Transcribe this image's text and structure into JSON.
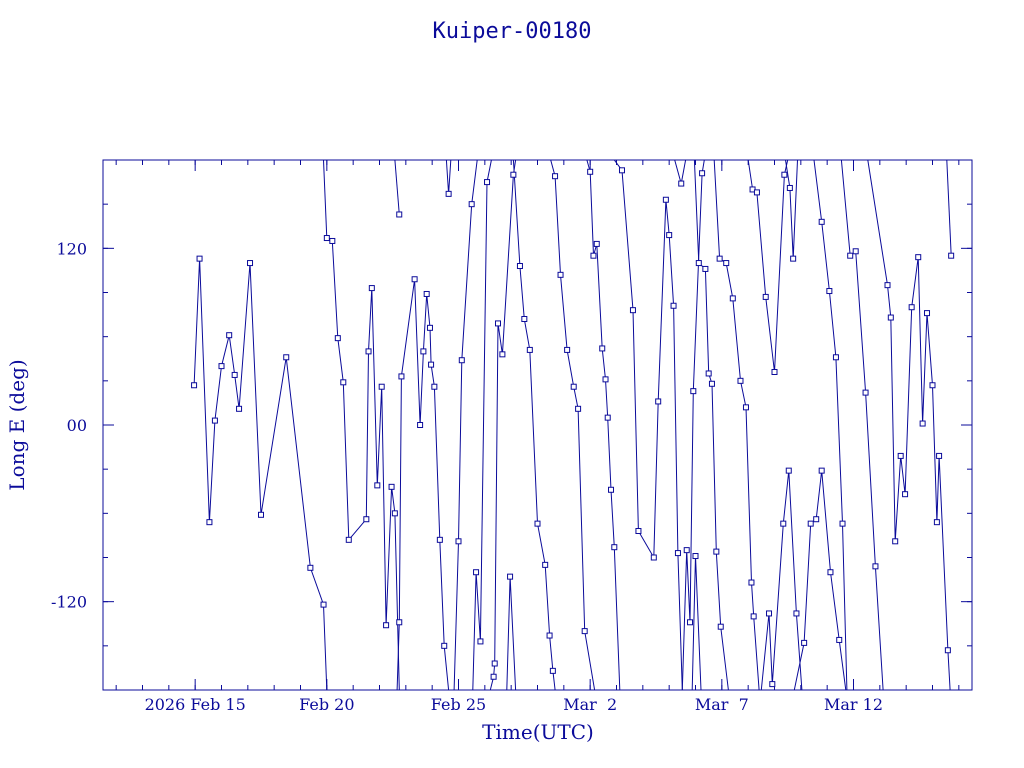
{
  "chart_data": {
    "type": "line",
    "title": "Kuiper-00180",
    "xlabel": "Time(UTC)",
    "ylabel": "Long E (deg)",
    "x_unit": "date",
    "xlim": [
      "2026-02-11T12:00",
      "2026-03-16T12:00"
    ],
    "ylim": [
      -180,
      180
    ],
    "x_ticks": [
      {
        "date": "2026-02-15",
        "label": "2026 Feb 15"
      },
      {
        "date": "2026-02-20",
        "label": "Feb 20"
      },
      {
        "date": "2026-02-25",
        "label": "Feb 25"
      },
      {
        "date": "2026-03-02",
        "label": "Mar  2"
      },
      {
        "date": "2026-03-07",
        "label": "Mar  7"
      },
      {
        "date": "2026-03-12",
        "label": "Mar 12"
      }
    ],
    "y_ticks": [
      {
        "value": 120,
        "label": "120"
      },
      {
        "value": 0,
        "label": "00"
      },
      {
        "value": -120,
        "label": "-120"
      }
    ],
    "colors": {
      "line": "#0b0b9a",
      "marker": "#0b0b9a",
      "frame": "#0b0b9a",
      "background": "#ffffff"
    },
    "markers": "open-square",
    "series": [
      {
        "points": [
          [
            "2026-02-14T23:00",
            27
          ],
          [
            "2026-02-15T04:00",
            113
          ],
          [
            "2026-02-15T13:00",
            -66
          ],
          [
            "2026-02-15T18:00",
            3
          ],
          [
            "2026-02-16T00:00",
            40
          ],
          [
            "2026-02-16T07:00",
            61
          ],
          [
            "2026-02-16T12:00",
            34
          ],
          [
            "2026-02-16T16:00",
            11
          ],
          [
            "2026-02-17T02:00",
            110
          ],
          [
            "2026-02-17T12:00",
            -61
          ],
          [
            "2026-02-18T11:00",
            46
          ],
          [
            "2026-02-19T09:00",
            -97
          ],
          [
            "2026-02-19T21:00",
            -122
          ],
          [
            "2026-02-20T00:00",
            -180
          ]
        ]
      },
      {
        "points": [
          [
            "2026-02-19T21:00",
            180
          ],
          [
            "2026-02-20T00:00",
            127
          ],
          [
            "2026-02-20T05:00",
            125
          ],
          [
            "2026-02-20T10:00",
            59
          ],
          [
            "2026-02-20T15:00",
            29
          ],
          [
            "2026-02-20T20:00",
            -78
          ],
          [
            "2026-02-21T12:00",
            -64
          ],
          [
            "2026-02-21T14:00",
            50
          ],
          [
            "2026-02-21T17:00",
            93
          ],
          [
            "2026-02-21T22:00",
            -41
          ],
          [
            "2026-02-22T02:00",
            26
          ],
          [
            "2026-02-22T06:00",
            -136
          ],
          [
            "2026-02-22T11:00",
            -42
          ],
          [
            "2026-02-22T14:00",
            -60
          ],
          [
            "2026-02-22T18:00",
            -180
          ]
        ]
      },
      {
        "points": [
          [
            "2026-02-22T14:00",
            180
          ],
          [
            "2026-02-22T18:00",
            143
          ]
        ]
      },
      {
        "points": [
          [
            "2026-02-22T16:00",
            -180
          ],
          [
            "2026-02-22T18:00",
            -134
          ],
          [
            "2026-02-22T20:00",
            33
          ],
          [
            "2026-02-23T08:00",
            99
          ],
          [
            "2026-02-23T13:00",
            0
          ],
          [
            "2026-02-23T16:00",
            50
          ],
          [
            "2026-02-23T19:00",
            89
          ],
          [
            "2026-02-23T22:00",
            66
          ],
          [
            "2026-02-23T23:00",
            41
          ],
          [
            "2026-02-24T02:00",
            26
          ],
          [
            "2026-02-24T07:00",
            -78
          ],
          [
            "2026-02-24T11:00",
            -150
          ],
          [
            "2026-02-24T15:00",
            -180
          ]
        ]
      },
      {
        "points": [
          [
            "2026-02-24T13:00",
            180
          ],
          [
            "2026-02-24T15:00",
            157
          ],
          [
            "2026-02-24T17:00",
            180
          ]
        ]
      },
      {
        "points": [
          [
            "2026-02-24T20:00",
            -180
          ],
          [
            "2026-02-25T00:00",
            -79
          ],
          [
            "2026-02-25T03:00",
            44
          ],
          [
            "2026-02-25T12:00",
            150
          ],
          [
            "2026-02-25T17:00",
            180
          ]
        ]
      },
      {
        "points": [
          [
            "2026-02-25T13:00",
            -180
          ],
          [
            "2026-02-25T16:00",
            -100
          ],
          [
            "2026-02-25T20:00",
            -147
          ],
          [
            "2026-02-26T02:00",
            165
          ],
          [
            "2026-02-26T06:00",
            180
          ]
        ]
      },
      {
        "points": [
          [
            "2026-02-26T05:00",
            -180
          ],
          [
            "2026-02-26T08:00",
            -171
          ],
          [
            "2026-02-26T09:00",
            -162
          ],
          [
            "2026-02-26T12:00",
            69
          ],
          [
            "2026-02-26T16:00",
            48
          ],
          [
            "2026-02-27T02:00",
            170
          ],
          [
            "2026-02-27T04:00",
            180
          ]
        ]
      },
      {
        "points": [
          [
            "2026-02-26T20:00",
            -180
          ],
          [
            "2026-02-26T23:00",
            -103
          ],
          [
            "2026-02-27T04:00",
            -180
          ]
        ]
      },
      {
        "points": [
          [
            "2026-02-27T02:00",
            180
          ],
          [
            "2026-02-27T08:00",
            108
          ],
          [
            "2026-02-27T12:00",
            72
          ],
          [
            "2026-02-27T17:00",
            51
          ],
          [
            "2026-02-28T00:00",
            -67
          ],
          [
            "2026-02-28T07:00",
            -95
          ],
          [
            "2026-02-28T11:00",
            -143
          ],
          [
            "2026-02-28T14:00",
            -167
          ],
          [
            "2026-02-28T16:00",
            -180
          ]
        ]
      },
      {
        "points": [
          [
            "2026-02-28T12:00",
            180
          ],
          [
            "2026-02-28T16:00",
            169
          ],
          [
            "2026-02-28T21:00",
            102
          ],
          [
            "2026-03-01T03:00",
            51
          ],
          [
            "2026-03-01T09:00",
            26
          ],
          [
            "2026-03-01T13:00",
            11
          ],
          [
            "2026-03-01T19:00",
            -140
          ],
          [
            "2026-03-02T04:00",
            -180
          ]
        ]
      },
      {
        "points": [
          [
            "2026-03-01T21:00",
            180
          ],
          [
            "2026-03-02T00:00",
            172
          ],
          [
            "2026-03-02T03:00",
            115
          ],
          [
            "2026-03-02T06:00",
            123
          ],
          [
            "2026-03-02T11:00",
            52
          ],
          [
            "2026-03-02T14:00",
            31
          ],
          [
            "2026-03-02T16:00",
            5
          ],
          [
            "2026-03-02T19:00",
            -44
          ],
          [
            "2026-03-02T22:00",
            -83
          ],
          [
            "2026-03-03T03:00",
            -180
          ]
        ]
      },
      {
        "points": [
          [
            "2026-03-02T22:00",
            180
          ],
          [
            "2026-03-03T05:00",
            173
          ],
          [
            "2026-03-03T15:00",
            78
          ],
          [
            "2026-03-03T20:00",
            -72
          ],
          [
            "2026-03-04T10:00",
            -90
          ],
          [
            "2026-03-04T14:00",
            16
          ],
          [
            "2026-03-04T21:00",
            153
          ],
          [
            "2026-03-05T00:00",
            129
          ],
          [
            "2026-03-05T04:00",
            81
          ],
          [
            "2026-03-05T08:00",
            -87
          ],
          [
            "2026-03-05T12:00",
            -180
          ]
        ]
      },
      {
        "points": [
          [
            "2026-03-05T05:00",
            180
          ],
          [
            "2026-03-05T11:00",
            164
          ],
          [
            "2026-03-05T15:00",
            180
          ]
        ]
      },
      {
        "points": [
          [
            "2026-03-05T12:00",
            -180
          ],
          [
            "2026-03-05T16:00",
            -85
          ],
          [
            "2026-03-05T19:00",
            -134
          ],
          [
            "2026-03-05T22:00",
            23
          ],
          [
            "2026-03-06T06:00",
            171
          ],
          [
            "2026-03-06T08:00",
            180
          ]
        ]
      },
      {
        "points": [
          [
            "2026-03-05T21:00",
            -180
          ],
          [
            "2026-03-06T00:00",
            -89
          ],
          [
            "2026-03-06T05:00",
            -180
          ]
        ]
      },
      {
        "points": [
          [
            "2026-03-05T23:00",
            180
          ],
          [
            "2026-03-06T03:00",
            110
          ],
          [
            "2026-03-06T09:00",
            106
          ],
          [
            "2026-03-06T12:00",
            35
          ],
          [
            "2026-03-06T15:00",
            28
          ],
          [
            "2026-03-06T19:00",
            -86
          ],
          [
            "2026-03-06T23:00",
            -137
          ],
          [
            "2026-03-07T06:00",
            -180
          ]
        ]
      },
      {
        "points": [
          [
            "2026-03-06T17:00",
            180
          ],
          [
            "2026-03-06T22:00",
            113
          ],
          [
            "2026-03-07T04:00",
            110
          ],
          [
            "2026-03-07T10:00",
            86
          ],
          [
            "2026-03-07T17:00",
            30
          ],
          [
            "2026-03-07T22:00",
            12
          ],
          [
            "2026-03-08T03:00",
            -107
          ],
          [
            "2026-03-08T05:00",
            -130
          ],
          [
            "2026-03-08T10:00",
            -180
          ]
        ]
      },
      {
        "points": [
          [
            "2026-03-08T00:00",
            180
          ],
          [
            "2026-03-08T04:00",
            160
          ],
          [
            "2026-03-08T08:00",
            158
          ],
          [
            "2026-03-08T16:00",
            87
          ],
          [
            "2026-03-09T00:00",
            36
          ],
          [
            "2026-03-09T09:00",
            170
          ],
          [
            "2026-03-09T12:00",
            180
          ]
        ]
      },
      {
        "points": [
          [
            "2026-03-08T12:00",
            -180
          ],
          [
            "2026-03-08T19:00",
            -128
          ],
          [
            "2026-03-08T22:00",
            -176
          ],
          [
            "2026-03-09T08:00",
            -67
          ],
          [
            "2026-03-09T13:00",
            -31
          ],
          [
            "2026-03-09T20:00",
            -128
          ],
          [
            "2026-03-10T01:00",
            -180
          ]
        ]
      },
      {
        "points": [
          [
            "2026-03-09T10:00",
            180
          ],
          [
            "2026-03-09T14:00",
            161
          ],
          [
            "2026-03-09T17:00",
            113
          ],
          [
            "2026-03-09T21:00",
            180
          ]
        ]
      },
      {
        "points": [
          [
            "2026-03-09T18:00",
            -180
          ],
          [
            "2026-03-10T03:00",
            -148
          ],
          [
            "2026-03-10T09:00",
            -67
          ],
          [
            "2026-03-10T14:00",
            -64
          ],
          [
            "2026-03-10T19:00",
            -31
          ],
          [
            "2026-03-11T03:00",
            -100
          ],
          [
            "2026-03-11T11:00",
            -146
          ],
          [
            "2026-03-11T17:00",
            -180
          ]
        ]
      },
      {
        "points": [
          [
            "2026-03-10T12:00",
            180
          ],
          [
            "2026-03-10T19:00",
            138
          ],
          [
            "2026-03-11T02:00",
            91
          ],
          [
            "2026-03-11T08:00",
            46
          ],
          [
            "2026-03-11T14:00",
            -67
          ],
          [
            "2026-03-11T18:00",
            -180
          ]
        ]
      },
      {
        "points": [
          [
            "2026-03-11T13:00",
            180
          ],
          [
            "2026-03-11T21:00",
            115
          ],
          [
            "2026-03-12T02:00",
            118
          ],
          [
            "2026-03-12T11:00",
            22
          ],
          [
            "2026-03-12T20:00",
            -96
          ],
          [
            "2026-03-13T03:00",
            -180
          ]
        ]
      },
      {
        "points": [
          [
            "2026-03-12T13:00",
            180
          ],
          [
            "2026-03-13T07:00",
            95
          ],
          [
            "2026-03-13T10:00",
            73
          ],
          [
            "2026-03-13T14:00",
            -79
          ],
          [
            "2026-03-13T19:00",
            -21
          ],
          [
            "2026-03-13T23:00",
            -47
          ],
          [
            "2026-03-14T05:00",
            80
          ],
          [
            "2026-03-14T11:00",
            114
          ],
          [
            "2026-03-14T15:00",
            1
          ],
          [
            "2026-03-14T19:00",
            76
          ],
          [
            "2026-03-15T00:00",
            27
          ],
          [
            "2026-03-15T04:00",
            -66
          ],
          [
            "2026-03-15T06:00",
            -21
          ],
          [
            "2026-03-15T14:00",
            -153
          ],
          [
            "2026-03-15T16:00",
            -180
          ]
        ]
      },
      {
        "points": [
          [
            "2026-03-15T13:00",
            180
          ],
          [
            "2026-03-15T17:00",
            115
          ]
        ]
      }
    ]
  }
}
